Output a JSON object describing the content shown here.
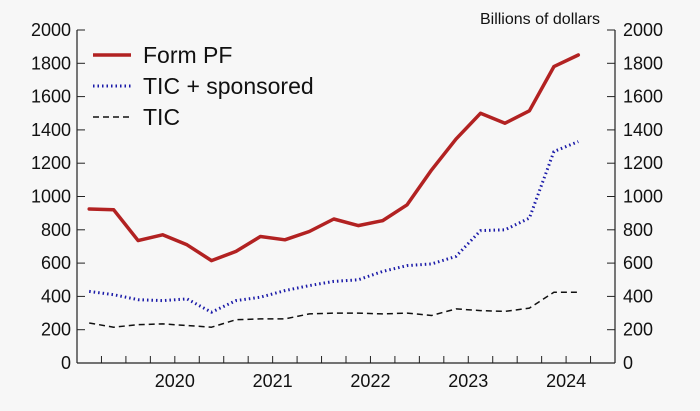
{
  "chart_data": {
    "type": "line",
    "title": "",
    "ylabel": "Billions of dollars",
    "xlabel": "",
    "ylim": [
      0,
      2000
    ],
    "yticks": [
      0,
      200,
      400,
      600,
      800,
      1000,
      1200,
      1400,
      1600,
      1800,
      2000
    ],
    "year_labels": [
      "2020",
      "2021",
      "2022",
      "2023",
      "2024"
    ],
    "x_quarters": [
      "2019 Q3",
      "2019 Q4",
      "2020 Q1",
      "2020 Q2",
      "2020 Q3",
      "2020 Q4",
      "2021 Q1",
      "2021 Q2",
      "2021 Q3",
      "2021 Q4",
      "2022 Q1",
      "2022 Q2",
      "2022 Q3",
      "2022 Q4",
      "2023 Q1",
      "2023 Q2",
      "2023 Q3",
      "2023 Q4",
      "2024 Q1",
      "2024 Q2",
      "2024 Q3",
      "2024 Q4"
    ],
    "series": [
      {
        "name": "Form PF",
        "color": "#b22222",
        "style": "solid",
        "values": [
          925,
          920,
          735,
          770,
          710,
          615,
          670,
          760,
          740,
          790,
          865,
          825,
          855,
          950,
          1160,
          1345,
          1500,
          1440,
          1515,
          1780,
          1850,
          null
        ]
      },
      {
        "name": "TIC + sponsored",
        "color": "#1a1aa8",
        "style": "dotted",
        "values": [
          430,
          410,
          380,
          375,
          385,
          305,
          375,
          395,
          435,
          465,
          490,
          500,
          550,
          585,
          595,
          640,
          795,
          800,
          870,
          1270,
          1330,
          null
        ]
      },
      {
        "name": "TIC",
        "color": "#111111",
        "style": "dashed",
        "values": [
          240,
          215,
          230,
          235,
          225,
          215,
          260,
          265,
          265,
          295,
          300,
          300,
          295,
          300,
          285,
          325,
          315,
          310,
          330,
          425,
          425,
          null
        ]
      }
    ],
    "legend_position": "top-left"
  }
}
